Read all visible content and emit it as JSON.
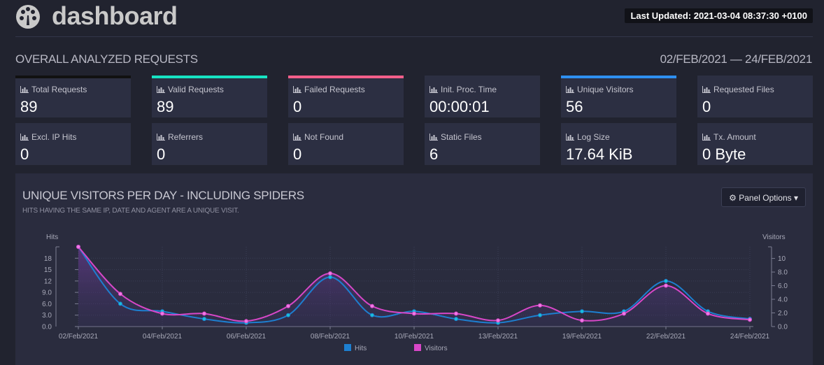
{
  "header": {
    "app_title": "dashboard",
    "last_updated": "Last Updated: 2021-03-04 08:37:30 +0100"
  },
  "overall": {
    "title": "OVERALL ANALYZED REQUESTS",
    "date_range": "02/FEB/2021 — 24/FEB/2021",
    "cards": [
      {
        "label": "Total Requests",
        "value": "89",
        "accent": "#111111"
      },
      {
        "label": "Valid Requests",
        "value": "89",
        "accent": "#17e3c2"
      },
      {
        "label": "Failed Requests",
        "value": "0",
        "accent": "#f35f8a"
      },
      {
        "label": "Init. Proc. Time",
        "value": "00:00:01",
        "accent": "#2c2f42"
      },
      {
        "label": "Unique Visitors",
        "value": "56",
        "accent": "#2e8ff0"
      },
      {
        "label": "Requested Files",
        "value": "0",
        "accent": "#2c2f42"
      },
      {
        "label": "Excl. IP Hits",
        "value": "0",
        "accent": "#2c2f42"
      },
      {
        "label": "Referrers",
        "value": "0",
        "accent": "#2c2f42"
      },
      {
        "label": "Not Found",
        "value": "0",
        "accent": "#2c2f42"
      },
      {
        "label": "Static Files",
        "value": "6",
        "accent": "#2c2f42"
      },
      {
        "label": "Log Size",
        "value": "17.64 KiB",
        "accent": "#2c2f42"
      },
      {
        "label": "Tx. Amount",
        "value": "0 Byte",
        "accent": "#2c2f42"
      }
    ]
  },
  "panel": {
    "title": "UNIQUE VISITORS PER DAY - INCLUDING SPIDERS",
    "subtitle": "HITS HAVING THE SAME IP, DATE AND AGENT ARE A UNIQUE VISIT.",
    "options_label": "Panel Options"
  },
  "chart_data": {
    "type": "line",
    "title": "UNIQUE VISITORS PER DAY - INCLUDING SPIDERS",
    "ylabel_left": "Hits",
    "ylabel_right": "Visitors",
    "x": [
      "02/Feb/2021",
      "03/Feb/2021",
      "04/Feb/2021",
      "05/Feb/2021",
      "06/Feb/2021",
      "07/Feb/2021",
      "08/Feb/2021",
      "09/Feb/2021",
      "10/Feb/2021",
      "11/Feb/2021",
      "13/Feb/2021",
      "17/Feb/2021",
      "19/Feb/2021",
      "21/Feb/2021",
      "22/Feb/2021",
      "23/Feb/2021",
      "24/Feb/2021"
    ],
    "x_tick_labels": [
      "02/Feb/2021",
      "04/Feb/2021",
      "06/Feb/2021",
      "08/Feb/2021",
      "10/Feb/2021",
      "13/Feb/2021",
      "19/Feb/2021",
      "22/Feb/2021",
      "24/Feb/2021"
    ],
    "ylim_left": [
      0,
      21
    ],
    "ylim_right": [
      0,
      11.7
    ],
    "y_ticks_left": [
      "0.0",
      "3.0",
      "6.0",
      "9.0",
      "12",
      "15",
      "18"
    ],
    "y_ticks_right": [
      "0.0",
      "2.0",
      "4.0",
      "6.0",
      "8.0",
      "10"
    ],
    "series": [
      {
        "name": "Hits",
        "axis": "left",
        "color": "#1d7fd0",
        "values": [
          21,
          6,
          4,
          2,
          1,
          3,
          13,
          3,
          4,
          2,
          1,
          3,
          4,
          4,
          12,
          4,
          2
        ]
      },
      {
        "name": "Visitors",
        "axis": "right",
        "color": "#d847c8",
        "values": [
          11.7,
          4.8,
          1.9,
          1.9,
          0.8,
          3.0,
          7.8,
          3.0,
          1.9,
          1.9,
          0.9,
          3.1,
          0.9,
          1.9,
          6.0,
          1.9,
          1.0
        ]
      }
    ],
    "legend": [
      "Hits",
      "Visitors"
    ],
    "legend_position": "bottom-center",
    "grid": true
  }
}
